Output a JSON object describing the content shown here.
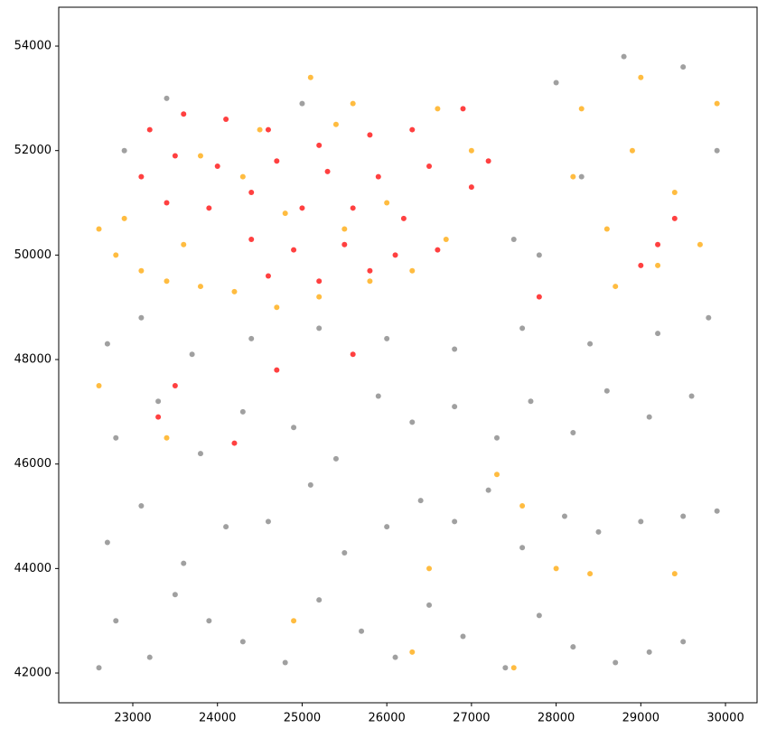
{
  "chart_data": {
    "type": "scatter",
    "xlim": [
      22125,
      30373
    ],
    "ylim": [
      41430,
      54744
    ],
    "xticks": [
      23000,
      24000,
      25000,
      26000,
      27000,
      28000,
      29000,
      30000
    ],
    "yticks": [
      42000,
      44000,
      46000,
      48000,
      50000,
      52000,
      54000
    ],
    "grid": false,
    "series": [
      {
        "color": "#808080",
        "x": [
          22600,
          22800,
          23200,
          23500,
          23900,
          24300,
          24800,
          25200,
          25700,
          26100,
          26500,
          26900,
          27400,
          27800,
          28200,
          28700,
          29100,
          29500,
          22700,
          23100,
          23600,
          24100,
          24600,
          25100,
          25500,
          26000,
          26400,
          26800,
          27200,
          27600,
          28100,
          28500,
          29000,
          29500,
          29900,
          22800,
          23300,
          23800,
          24300,
          24900,
          25400,
          25900,
          26300,
          26800,
          27300,
          27700,
          28200,
          28600,
          29100,
          29600,
          22700,
          23100,
          23700,
          24400,
          25200,
          26000,
          26800,
          27600,
          28400,
          29200,
          29800,
          22900,
          23400,
          25000,
          27500,
          28000,
          28800,
          29500,
          29900,
          28300,
          27800
        ],
        "y": [
          42100,
          43000,
          42300,
          43500,
          43000,
          42600,
          42200,
          43400,
          42800,
          42300,
          43300,
          42700,
          42100,
          43100,
          42500,
          42200,
          42400,
          42600,
          44500,
          45200,
          44100,
          44800,
          44900,
          45600,
          44300,
          44800,
          45300,
          44900,
          45500,
          44400,
          45000,
          44700,
          44900,
          45000,
          45100,
          46500,
          47200,
          46200,
          47000,
          46700,
          46100,
          47300,
          46800,
          47100,
          46500,
          47200,
          46600,
          47400,
          46900,
          47300,
          48300,
          48800,
          48100,
          48400,
          48600,
          48400,
          48200,
          48600,
          48300,
          48500,
          48800,
          52000,
          53000,
          52900,
          50300,
          53300,
          53800,
          53600,
          52000,
          51500,
          50000
        ]
      },
      {
        "color": "#ffa500",
        "x": [
          22600,
          22800,
          23100,
          23400,
          23800,
          24200,
          24700,
          25200,
          25800,
          26300,
          26700,
          26000,
          25500,
          24800,
          24300,
          23800,
          24500,
          25400,
          25100,
          25600,
          26600,
          27000,
          23600,
          22900,
          28200,
          28300,
          28600,
          28900,
          29000,
          29400,
          29700,
          29900,
          29200,
          28700,
          22600,
          23400,
          27300,
          27600,
          28000,
          28400,
          29400,
          26300,
          27500,
          26500,
          24900
        ],
        "y": [
          50500,
          50000,
          49700,
          49500,
          49400,
          49300,
          49000,
          49200,
          49500,
          49700,
          50300,
          51000,
          50500,
          50800,
          51500,
          51900,
          52400,
          52500,
          53400,
          52900,
          52800,
          52000,
          50200,
          50700,
          51500,
          52800,
          50500,
          52000,
          53400,
          51200,
          50200,
          52900,
          49800,
          49400,
          47500,
          46500,
          45800,
          45200,
          44000,
          43900,
          43900,
          42400,
          42100,
          44000,
          43000
        ]
      },
      {
        "color": "#ff0000",
        "x": [
          23200,
          23600,
          24100,
          24600,
          25200,
          25800,
          26300,
          26900,
          27200,
          27000,
          26500,
          25900,
          25300,
          24700,
          24000,
          23500,
          23100,
          23400,
          23900,
          24400,
          25000,
          25600,
          26200,
          26600,
          26100,
          25500,
          24900,
          24400,
          24600,
          25200,
          25800,
          25600,
          24700,
          23300,
          23500,
          29000,
          29200,
          27800,
          29400,
          24200
        ],
        "y": [
          52400,
          52700,
          52600,
          52400,
          52100,
          52300,
          52400,
          52800,
          51800,
          51300,
          51700,
          51500,
          51600,
          51800,
          51700,
          51900,
          51500,
          51000,
          50900,
          51200,
          50900,
          50900,
          50700,
          50100,
          50000,
          50200,
          50100,
          50300,
          49600,
          49500,
          49700,
          48100,
          47800,
          46900,
          47500,
          49800,
          50200,
          49200,
          50700,
          46400
        ]
      }
    ]
  }
}
